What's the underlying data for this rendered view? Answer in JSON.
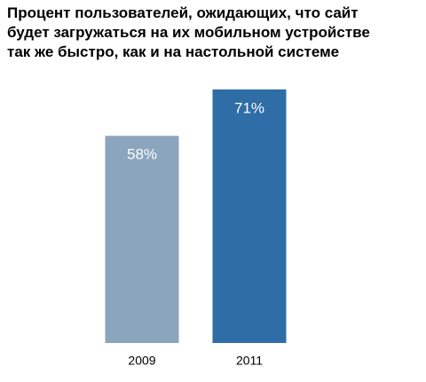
{
  "chart_data": {
    "type": "bar",
    "title": "Процент пользователей,  ожидающих,  что сайт\nбудет загружаться на их мобильном устройстве\nтак  же  быстро,  как  и  на  настольной  системе",
    "categories": [
      "2009",
      "2011"
    ],
    "values": [
      58,
      71
    ],
    "value_labels": [
      "58%",
      "71%"
    ],
    "colors": [
      "#8aa5bd",
      "#2e6da5"
    ]
  }
}
